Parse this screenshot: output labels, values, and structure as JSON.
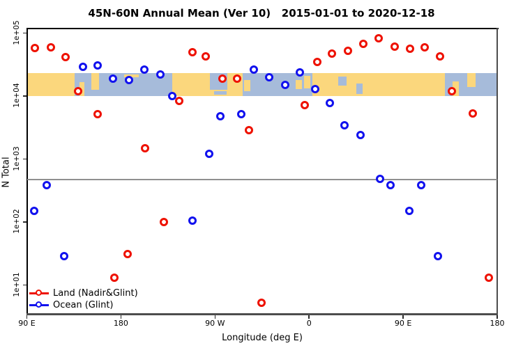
{
  "title": "45N-60N Annual Mean (Ver 10)   2015-01-01 to 2020-12-18",
  "chart_data": {
    "type": "scatter",
    "title": "45N-60N Annual Mean (Ver 10)   2015-01-01 to 2020-12-18",
    "xlabel": "Longitude (deg E)",
    "ylabel": "N Total",
    "x_axis": {
      "range": [
        90,
        540
      ],
      "note": "longitude axis wraps eastward from 90E around the globe to 180",
      "ticks": [
        {
          "pos": 90,
          "label": "90 E"
        },
        {
          "pos": 180,
          "label": "180"
        },
        {
          "pos": 270,
          "label": "90 W"
        },
        {
          "pos": 360,
          "label": "0"
        },
        {
          "pos": 450,
          "label": "90 E"
        },
        {
          "pos": 540,
          "label": "180"
        }
      ]
    },
    "y_axis": {
      "scale": "log",
      "ticks": [
        {
          "value": 100000,
          "label": "1e+05"
        },
        {
          "value": 10000,
          "label": "1e+04"
        },
        {
          "value": 1000,
          "label": "1e+03"
        },
        {
          "value": 100,
          "label": "1e+02"
        },
        {
          "value": 10,
          "label": "1e+01"
        }
      ]
    },
    "reference_line": {
      "value": 470,
      "color": "#8f8f8f"
    },
    "map_band": {
      "description": "world land/ocean strip for 45N-60N drawn between y values",
      "value_top": 23000,
      "value_bottom": 10000,
      "land_color": "#FBD77D",
      "ocean_color": "#A6BBDA",
      "ocean_segments": [
        {
          "from": 136,
          "to": 229,
          "top": 0,
          "h": 1
        },
        {
          "from": 265,
          "to": 282,
          "top": 0,
          "h": 0.72
        },
        {
          "from": 296.5,
          "to": 363,
          "top": 0,
          "h": 1
        },
        {
          "from": 490,
          "to": 540,
          "top": 0,
          "h": 1
        }
      ],
      "land_patches": [
        {
          "from": 140.5,
          "to": 145,
          "top": 0.38,
          "h": 0.62
        },
        {
          "from": 152,
          "to": 159,
          "top": 0,
          "h": 0.72
        },
        {
          "from": 183,
          "to": 197,
          "top": 0.05,
          "h": 0.12
        },
        {
          "from": 298,
          "to": 304,
          "top": 0.3,
          "h": 0.5
        },
        {
          "from": 347,
          "to": 353,
          "top": 0.3,
          "h": 0.4
        },
        {
          "from": 355.5,
          "to": 361,
          "top": 0.1,
          "h": 0.55
        },
        {
          "from": 497,
          "to": 503,
          "top": 0.35,
          "h": 0.65
        },
        {
          "from": 511,
          "to": 519,
          "top": 0,
          "h": 0.6
        }
      ],
      "ocean_patches": [
        {
          "from": 388,
          "to": 396,
          "top": 0.15,
          "h": 0.4
        },
        {
          "from": 405,
          "to": 411,
          "top": 0.45,
          "h": 0.45
        },
        {
          "from": 269,
          "to": 281,
          "top": 0.78,
          "h": 0.16
        }
      ]
    },
    "series": [
      {
        "name": "Land (Nadir&Glint)",
        "color": "#EE1100",
        "points": [
          [
            98,
            58000
          ],
          [
            113,
            59000
          ],
          [
            127,
            42000
          ],
          [
            139,
            12000
          ],
          [
            158,
            5100
          ],
          [
            174,
            13
          ],
          [
            186.5,
            31
          ],
          [
            203,
            1500
          ],
          [
            221,
            100
          ],
          [
            236,
            8400
          ],
          [
            248.5,
            50000
          ],
          [
            261,
            43000
          ],
          [
            277,
            19000
          ],
          [
            291,
            19000
          ],
          [
            302.5,
            2900
          ],
          [
            314.5,
            5.2
          ],
          [
            356,
            7200
          ],
          [
            368,
            35000
          ],
          [
            382,
            47000
          ],
          [
            397,
            52000
          ],
          [
            412,
            67000
          ],
          [
            426.5,
            83000
          ],
          [
            442,
            61000
          ],
          [
            456.5,
            56000
          ],
          [
            470.5,
            59000
          ],
          [
            485,
            43000
          ],
          [
            496.5,
            12000
          ],
          [
            516.5,
            5300
          ],
          [
            532,
            13
          ]
        ]
      },
      {
        "name": "Ocean (Glint)",
        "color": "#1111EE",
        "points": [
          [
            97,
            150
          ],
          [
            109,
            390
          ],
          [
            125.5,
            29
          ],
          [
            143.5,
            29000
          ],
          [
            157.5,
            31000
          ],
          [
            172.5,
            19000
          ],
          [
            187.5,
            18000
          ],
          [
            202.5,
            26000
          ],
          [
            217.5,
            22000
          ],
          [
            229,
            10000
          ],
          [
            248.5,
            105
          ],
          [
            264.5,
            1200
          ],
          [
            275,
            4800
          ],
          [
            295,
            5100
          ],
          [
            307,
            26000
          ],
          [
            322,
            20000
          ],
          [
            337,
            15000
          ],
          [
            351,
            24000
          ],
          [
            366,
            13000
          ],
          [
            380,
            7800
          ],
          [
            394,
            3400
          ],
          [
            409.5,
            2400
          ],
          [
            428,
            490
          ],
          [
            438,
            390
          ],
          [
            456,
            150
          ],
          [
            467.5,
            390
          ],
          [
            483.5,
            29
          ]
        ]
      }
    ],
    "legend": {
      "position": "bottom-left"
    }
  }
}
